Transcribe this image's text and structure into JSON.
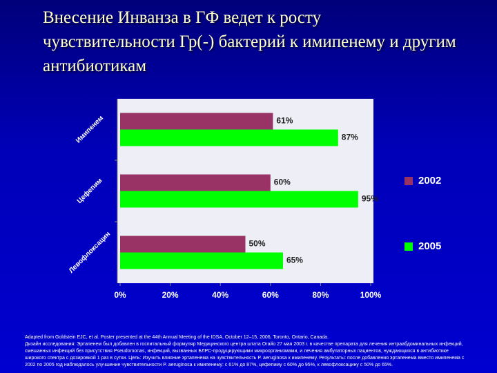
{
  "title": "Внесение Инванза в ГФ ведет к росту чувствительности Гр(-) бактерий к имипенему и другим антибиотикам",
  "chart_data": {
    "type": "hbar",
    "categories": [
      "Имипенем",
      "Цефепим",
      "Левофлоксацин"
    ],
    "series": [
      {
        "name": "2002",
        "color": "#993366",
        "values": [
          61,
          60,
          50
        ],
        "value_labels": [
          "61%",
          "60%",
          "50%"
        ]
      },
      {
        "name": "2005",
        "color": "#00ff00",
        "values": [
          87,
          95,
          65
        ],
        "value_labels": [
          "87%",
          "95%",
          "65%"
        ]
      }
    ],
    "xlim": [
      0,
      100
    ],
    "xticks": [
      {
        "value": 0,
        "label": "0%"
      },
      {
        "value": 20,
        "label": "20%"
      },
      {
        "value": 40,
        "label": "40%"
      },
      {
        "value": 60,
        "label": "60%"
      },
      {
        "value": 80,
        "label": "80%"
      },
      {
        "value": 100,
        "label": "100%"
      }
    ],
    "grid": false,
    "legend": "right"
  },
  "footnote": [
    "Adapted from Goldstein EJC, et al. Poster presented at the 44th Annual Meeting of the IDSA, October 12–15, 2006, Toronto, Ontario, Canada.",
    "Дизайн исследования: Эртапенем был добавлен в госпитальный формуляр Медицинского центра штата Огайо 27 мая 2003 г. в качестве препарата для лечения интраабдоминальных инфекций, смешанных инфекций без присутствия Pseudomonas, инфекций, вызванных БЛРС-продуцирующими микроорганизмами, и лечения амбулаторных пациентов, нуждающихся в антибиотике широкого спектра с дозировкой 1 раз в сутки. Цель: Изучить влияние эртапенема на чувствительность P. aeruginosa к имипенему. Результаты: после добавления эртапенема вместо имипенема с 2002 по 2005 год наблюдалось улучшение чувствительности P. aeruginosa к имипенему: с 61% до 87%, цефепиму с 60% до 95%, к левофлоксацину с 50% до 65%."
  ]
}
